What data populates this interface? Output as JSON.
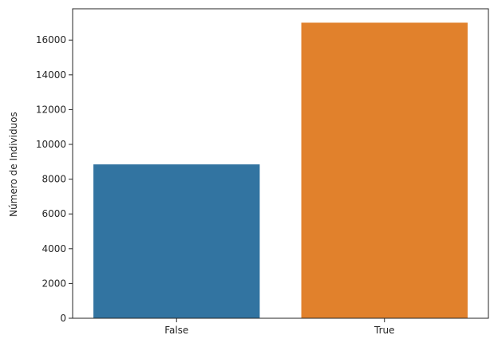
{
  "chart_data": {
    "type": "bar",
    "title": "",
    "xlabel": "",
    "ylabel": "Número de Individuos",
    "categories": [
      "False",
      "True"
    ],
    "values": [
      8850,
      17000
    ],
    "colors": [
      "#3274a1",
      "#e1812c"
    ],
    "ylim": [
      0,
      17800
    ],
    "yticks": [
      0,
      2000,
      4000,
      6000,
      8000,
      10000,
      12000,
      14000,
      16000
    ],
    "grid": false,
    "legend": "none"
  }
}
